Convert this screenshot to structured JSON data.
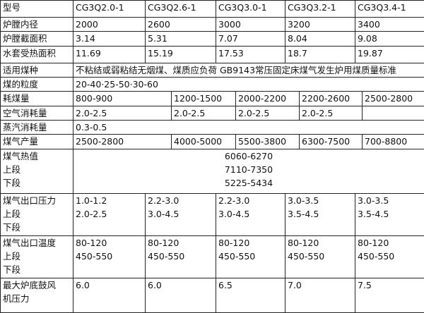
{
  "table": {
    "rows": [
      {
        "label": [
          "型号"
        ],
        "cells": [
          "CG3Q2.0-1",
          "CG3Q2.6-1",
          "CG3Q3.0-1",
          "CG3Q3.2-1",
          "CG3Q3.4-1"
        ]
      },
      {
        "label": [
          "炉膛内径"
        ],
        "cells": [
          "2000",
          "2600",
          "3000",
          "3200",
          "3400"
        ]
      },
      {
        "label": [
          "炉膛截面积"
        ],
        "cells": [
          "3.14",
          "5.31",
          "7.07",
          "8.04",
          "9.08"
        ]
      },
      {
        "label": [
          "水套受热面积"
        ],
        "cells": [
          "11.69",
          "15.19",
          "17.53",
          "18.7",
          "19.87"
        ]
      },
      {
        "label": [
          "适用煤种"
        ],
        "cells": [
          "不粘结或弱粘结无烟煤、煤质应负荷 GB9143常压固定床煤气发生炉用煤质量标准"
        ]
      },
      {
        "label": [
          "煤的粒度"
        ],
        "cells": [
          "20-40·25-50·30-60"
        ]
      },
      {
        "label": [
          "耗煤量"
        ],
        "cells": [
          "800-900",
          "1200-1500",
          "2000-2200",
          "2200-2600",
          "2500-2800"
        ]
      },
      {
        "label": [
          "空气消耗量"
        ],
        "cells": [
          "2.0-2.5",
          "2.0-2.5",
          "2.0-2.5",
          "2.0-2.5"
        ]
      },
      {
        "label": [
          "蒸汽消耗量"
        ],
        "cells": [
          "0.3-0.5"
        ]
      },
      {
        "label": [
          "煤气产量"
        ],
        "cells": [
          "2500-2800",
          "4000-5000",
          "5500-3800",
          "6300-7500",
          "700-8800"
        ]
      },
      {
        "label": [
          "煤气热值",
          "上段",
          "下段"
        ],
        "cells": [
          [
            "6060-6270",
            "7110-7350",
            "5225-5434"
          ]
        ]
      },
      {
        "label": [
          "煤气出口压力",
          "上段",
          "下段"
        ],
        "cells": [
          [
            "1.0-1.2",
            "2.0-2.5"
          ],
          [
            "2.2-3.0",
            "3.0-4.5"
          ],
          [
            "2.2-3.0",
            "3.0-4.5"
          ],
          [
            "3.0-3.5",
            "3.5-4.5"
          ],
          [
            "3.0-3.5",
            "3.5-4.5"
          ]
        ]
      },
      {
        "label": [
          "煤气出口温度",
          "上段",
          "下段"
        ],
        "cells": [
          [
            "80-120",
            "450-550"
          ],
          [
            "80-120",
            "450-550"
          ],
          [
            "80-120",
            "450-550"
          ],
          [
            "80-120",
            "450-550"
          ],
          [
            "80-120",
            "450-550"
          ]
        ]
      },
      {
        "label": [
          "最大炉底鼓风",
          "机压力"
        ],
        "cells": [
          "6.0",
          "6.0",
          "6.5",
          "7.0",
          "7.5"
        ]
      }
    ]
  }
}
